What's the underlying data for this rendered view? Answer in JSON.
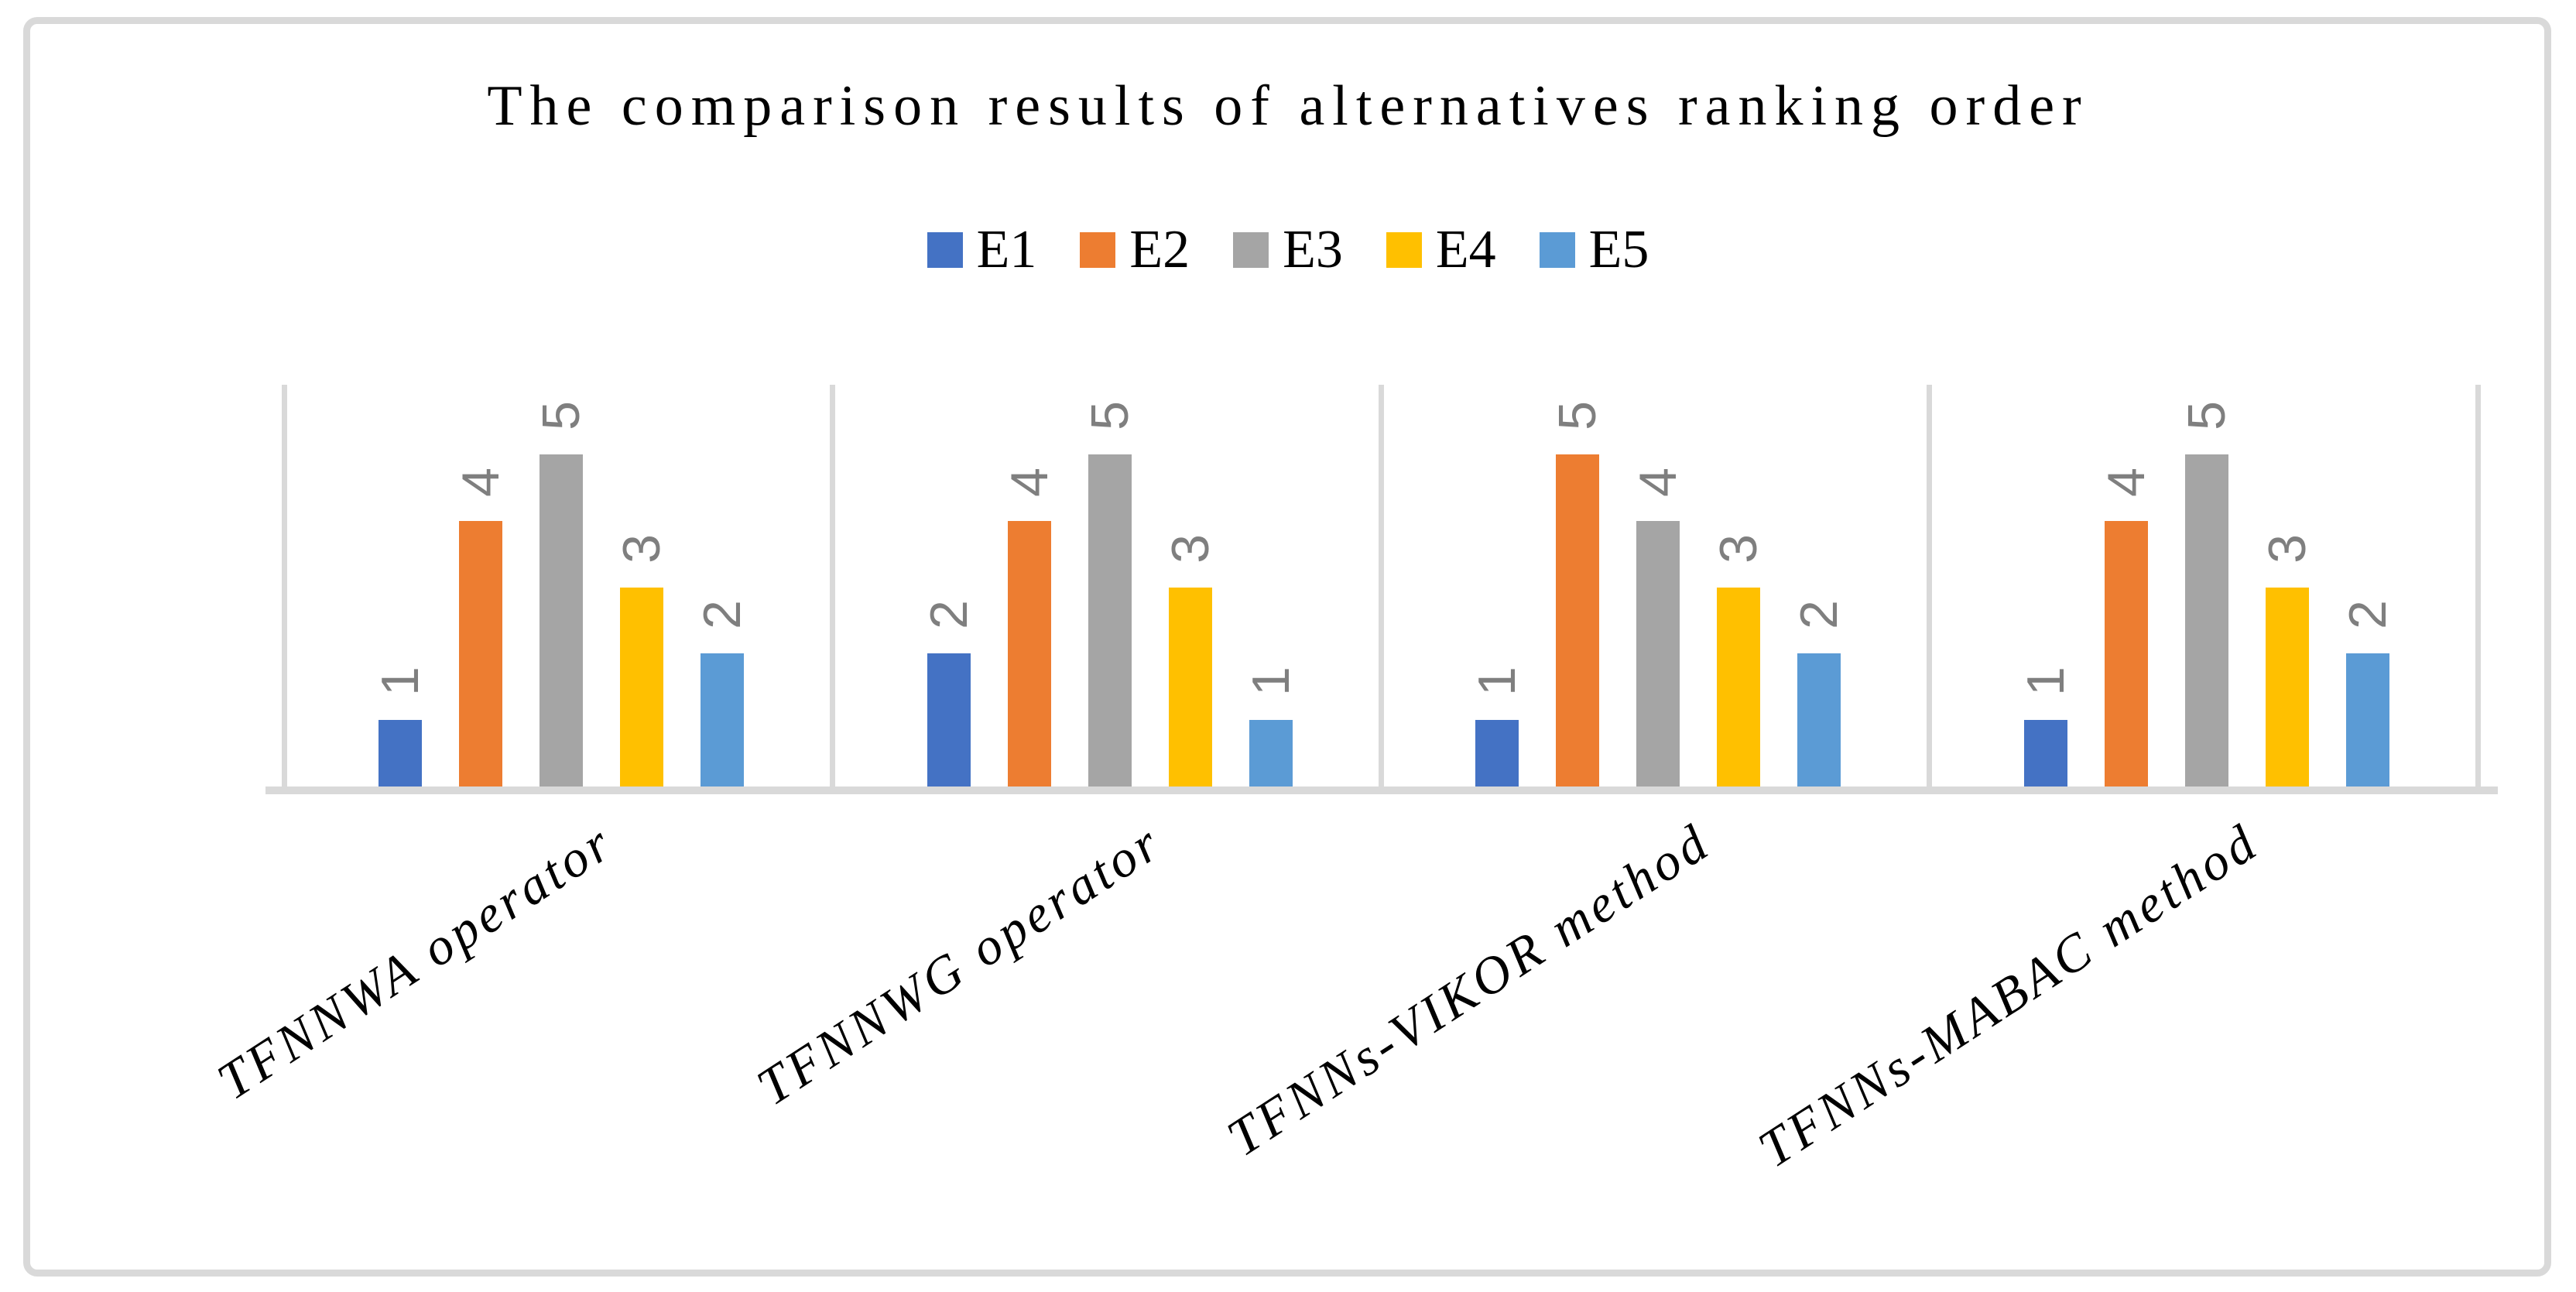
{
  "chart_data": {
    "type": "bar",
    "title": "The comparison results of alternatives ranking order",
    "categories": [
      "TFNNWA operator",
      "TFNNWG operator",
      "TFNNs-VIKOR method",
      "TFNNs-MABAC method"
    ],
    "series": [
      {
        "name": "E1",
        "color": "#4472C4",
        "values": [
          1,
          2,
          1,
          1
        ]
      },
      {
        "name": "E2",
        "color": "#ED7D31",
        "values": [
          4,
          4,
          5,
          4
        ]
      },
      {
        "name": "E3",
        "color": "#A5A5A5",
        "values": [
          5,
          5,
          4,
          5
        ]
      },
      {
        "name": "E4",
        "color": "#FFC000",
        "values": [
          3,
          3,
          3,
          3
        ]
      },
      {
        "name": "E5",
        "color": "#5B9BD5",
        "values": [
          2,
          1,
          2,
          2
        ]
      }
    ],
    "ylim": [
      0,
      5
    ],
    "legend_position": "top",
    "grid": "vertical category separator lines only, no value axis shown",
    "data_labels": "value above each bar, rotated 90 degrees, gray",
    "category_labels_rotation_deg": -33
  },
  "colors": {
    "axis_line": "#D9D9D9",
    "chart_border": "#D9D9D9",
    "data_label_text": "#7F7F7F",
    "text": "#000000",
    "background": "#FFFFFF"
  }
}
